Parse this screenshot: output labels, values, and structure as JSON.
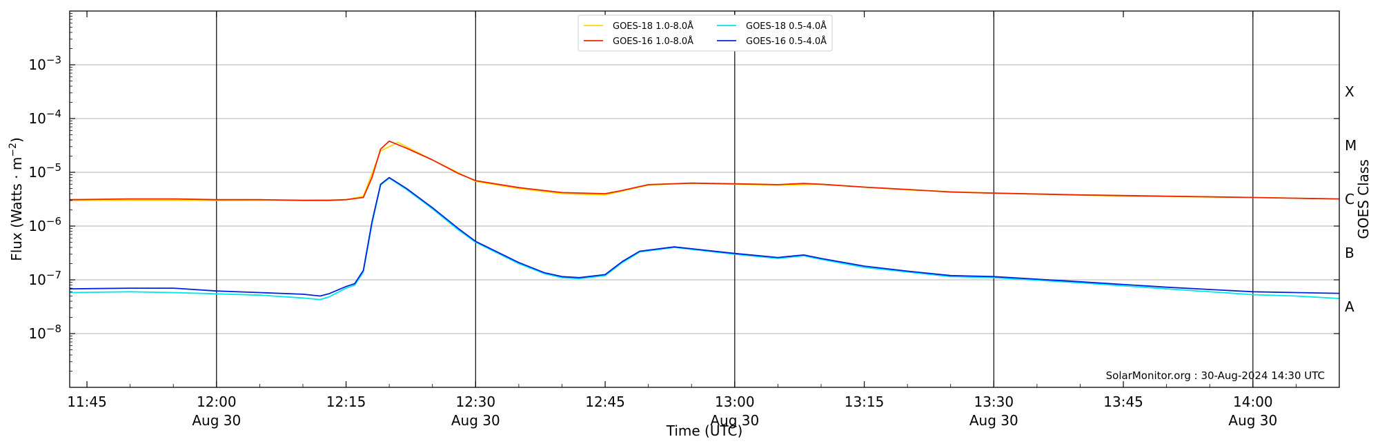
{
  "chart_data": {
    "type": "line",
    "xlabel": "Time (UTC)",
    "ylabel_prefix": "Flux (Watts · m",
    "ylabel_exp": "−2",
    "ylabel_suffix": ")",
    "right_axis_title": "GOES Class",
    "footer": "SolarMonitor.org : 30-Aug-2024 14:30 UTC",
    "x_range": [
      "11:43",
      "14:10"
    ],
    "y_range_log10": [
      -9.0,
      -2.0
    ],
    "y_scale": "log",
    "grid": "horizontal",
    "legend_position": "top-center",
    "x_ticks": [
      {
        "time": "11:45",
        "label": "11:45",
        "sub": ""
      },
      {
        "time": "12:00",
        "label": "12:00",
        "sub": "Aug 30"
      },
      {
        "time": "12:15",
        "label": "12:15",
        "sub": ""
      },
      {
        "time": "12:30",
        "label": "12:30",
        "sub": "Aug 30"
      },
      {
        "time": "12:45",
        "label": "12:45",
        "sub": ""
      },
      {
        "time": "13:00",
        "label": "13:00",
        "sub": "Aug 30"
      },
      {
        "time": "13:15",
        "label": "13:15",
        "sub": ""
      },
      {
        "time": "13:30",
        "label": "13:30",
        "sub": "Aug 30"
      },
      {
        "time": "13:45",
        "label": "13:45",
        "sub": ""
      },
      {
        "time": "14:00",
        "label": "14:00",
        "sub": "Aug 30"
      }
    ],
    "day_lines": [
      "12:00",
      "12:30",
      "13:00",
      "13:30",
      "14:00"
    ],
    "y_ticks": [
      {
        "exp": -8,
        "base": "10",
        "sup": "−8"
      },
      {
        "exp": -7,
        "base": "10",
        "sup": "−7"
      },
      {
        "exp": -6,
        "base": "10",
        "sup": "−6"
      },
      {
        "exp": -5,
        "base": "10",
        "sup": "−5"
      },
      {
        "exp": -4,
        "base": "10",
        "sup": "−4"
      },
      {
        "exp": -3,
        "base": "10",
        "sup": "−3"
      }
    ],
    "goes_classes": [
      {
        "label": "A",
        "exp": -7.5
      },
      {
        "label": "B",
        "exp": -6.5
      },
      {
        "label": "C",
        "exp": -5.5
      },
      {
        "label": "M",
        "exp": -4.5
      },
      {
        "label": "X",
        "exp": -3.5
      }
    ],
    "series": [
      {
        "name": "GOES-18 1.0-8.0Å",
        "color": "#ffd700",
        "x": [
          "11:43",
          "12:00",
          "12:15",
          "12:17",
          "12:19",
          "12:21",
          "12:25",
          "12:30",
          "12:35",
          "12:40",
          "12:45",
          "12:50",
          "12:55",
          "13:00",
          "13:05",
          "13:10",
          "13:20",
          "13:30",
          "13:45",
          "14:00",
          "14:10"
        ],
        "y": [
          3e-06,
          3e-06,
          3.1e-06,
          3.6e-06,
          2.5e-05,
          3.6e-05,
          1.7e-05,
          6.8e-06,
          5e-06,
          4e-06,
          3.8e-06,
          5.8e-06,
          6.3e-06,
          6e-06,
          5.8e-06,
          6e-06,
          4.7e-06,
          4.1e-06,
          3.6e-06,
          3.4e-06,
          3.2e-06
        ]
      },
      {
        "name": "GOES-16 1.0-8.0Å",
        "color": "#ee2200",
        "x": [
          "11:43",
          "11:50",
          "11:55",
          "12:00",
          "12:05",
          "12:10",
          "12:13",
          "12:15",
          "12:17",
          "12:18",
          "12:19",
          "12:20",
          "12:22",
          "12:25",
          "12:28",
          "12:30",
          "12:35",
          "12:40",
          "12:45",
          "12:47",
          "12:50",
          "12:55",
          "13:00",
          "13:05",
          "13:08",
          "13:10",
          "13:15",
          "13:20",
          "13:25",
          "13:30",
          "13:40",
          "13:50",
          "14:00",
          "14:05",
          "14:10"
        ],
        "y": [
          3.1e-06,
          3.2e-06,
          3.2e-06,
          3.1e-06,
          3.1e-06,
          3e-06,
          3e-06,
          3.1e-06,
          3.4e-06,
          8e-06,
          2.7e-05,
          3.8e-05,
          2.8e-05,
          1.7e-05,
          9.5e-06,
          7e-06,
          5.2e-06,
          4.2e-06,
          4e-06,
          4.6e-06,
          5.9e-06,
          6.3e-06,
          6.1e-06,
          5.9e-06,
          6.2e-06,
          6e-06,
          5.3e-06,
          4.8e-06,
          4.3e-06,
          4.1e-06,
          3.8e-06,
          3.6e-06,
          3.4e-06,
          3.3e-06,
          3.2e-06
        ]
      },
      {
        "name": "GOES-18 0.5-4.0Å",
        "color": "#00e5ee",
        "x": [
          "11:43",
          "11:50",
          "11:55",
          "12:00",
          "12:05",
          "12:10",
          "12:12",
          "12:13",
          "12:15",
          "12:16",
          "12:17",
          "12:18",
          "12:19",
          "12:20",
          "12:22",
          "12:25",
          "12:28",
          "12:30",
          "12:35",
          "12:38",
          "12:40",
          "12:42",
          "12:45",
          "12:47",
          "12:49",
          "12:53",
          "13:00",
          "13:05",
          "13:08",
          "13:10",
          "13:15",
          "13:20",
          "13:25",
          "13:30",
          "13:40",
          "13:50",
          "14:00",
          "14:05",
          "14:10"
        ],
        "y": [
          5.8e-08,
          6e-08,
          5.8e-08,
          5.5e-08,
          5.2e-08,
          4.6e-08,
          4.3e-08,
          4.8e-08,
          7e-08,
          8e-08,
          1.4e-07,
          1.1e-06,
          5.8e-06,
          7.8e-06,
          4.8e-06,
          2.1e-06,
          8.5e-07,
          5e-07,
          2e-07,
          1.3e-07,
          1.1e-07,
          1.05e-07,
          1.2e-07,
          2.1e-07,
          3.3e-07,
          4e-07,
          3e-07,
          2.5e-07,
          2.8e-07,
          2.4e-07,
          1.7e-07,
          1.4e-07,
          1.15e-07,
          1.1e-07,
          8.8e-08,
          6.8e-08,
          5.3e-08,
          5e-08,
          4.5e-08
        ]
      },
      {
        "name": "GOES-16 0.5-4.0Å",
        "color": "#0022dd",
        "x": [
          "11:43",
          "11:50",
          "11:55",
          "12:00",
          "12:05",
          "12:10",
          "12:12",
          "12:13",
          "12:15",
          "12:16",
          "12:17",
          "12:18",
          "12:19",
          "12:20",
          "12:22",
          "12:25",
          "12:28",
          "12:30",
          "12:35",
          "12:38",
          "12:40",
          "12:42",
          "12:45",
          "12:47",
          "12:49",
          "12:53",
          "13:00",
          "13:05",
          "13:08",
          "13:10",
          "13:15",
          "13:20",
          "13:25",
          "13:30",
          "13:40",
          "13:50",
          "14:00",
          "14:05",
          "14:10"
        ],
        "y": [
          6.8e-08,
          7e-08,
          7e-08,
          6.2e-08,
          5.8e-08,
          5.4e-08,
          5e-08,
          5.5e-08,
          7.5e-08,
          8.5e-08,
          1.5e-07,
          1.2e-06,
          6e-06,
          8e-06,
          5e-06,
          2.2e-06,
          9e-07,
          5.2e-07,
          2.1e-07,
          1.35e-07,
          1.15e-07,
          1.1e-07,
          1.25e-07,
          2.2e-07,
          3.4e-07,
          4.1e-07,
          3.1e-07,
          2.6e-07,
          2.9e-07,
          2.5e-07,
          1.8e-07,
          1.45e-07,
          1.2e-07,
          1.15e-07,
          9.2e-08,
          7.3e-08,
          6e-08,
          5.8e-08,
          5.6e-08
        ]
      }
    ]
  }
}
